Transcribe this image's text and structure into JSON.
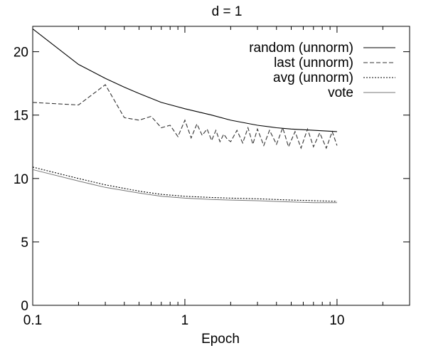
{
  "chart_data": {
    "type": "line",
    "title": "d = 1",
    "xlabel": "Epoch",
    "ylabel": "",
    "xscale": "log",
    "xlim": [
      0.1,
      30
    ],
    "ylim": [
      0,
      22
    ],
    "xticks": [
      0.1,
      1,
      10
    ],
    "xtick_labels": [
      "0.1",
      "1",
      "10"
    ],
    "yticks": [
      0,
      5,
      10,
      15,
      20
    ],
    "ytick_labels": [
      "0",
      "5",
      "10",
      "15",
      "20"
    ],
    "grid": false,
    "legend_position": "top-right",
    "series": [
      {
        "name": "random (unnorm)",
        "style": "solid",
        "color": "#000000",
        "x": [
          0.1,
          0.2,
          0.3,
          0.4,
          0.5,
          0.7,
          1,
          1.5,
          2,
          3,
          4,
          5,
          7,
          10
        ],
        "y": [
          21.8,
          19.0,
          17.9,
          17.2,
          16.7,
          16.0,
          15.5,
          15.0,
          14.6,
          14.2,
          14.0,
          13.9,
          13.8,
          13.7
        ]
      },
      {
        "name": "last (unnorm)",
        "style": "dashed",
        "color": "#000000",
        "x": [
          0.1,
          0.2,
          0.3,
          0.4,
          0.5,
          0.6,
          0.7,
          0.8,
          0.9,
          1.0,
          1.1,
          1.2,
          1.3,
          1.4,
          1.5,
          1.6,
          1.7,
          1.8,
          1.9,
          2.0,
          2.2,
          2.4,
          2.6,
          2.8,
          3.0,
          3.3,
          3.6,
          4.0,
          4.4,
          4.8,
          5.3,
          5.8,
          6.4,
          7.0,
          7.7,
          8.5,
          9.3,
          10.0
        ],
        "y": [
          16.0,
          15.8,
          17.4,
          14.8,
          14.6,
          14.9,
          14.0,
          14.2,
          13.3,
          14.6,
          13.2,
          14.3,
          13.4,
          13.9,
          13.0,
          13.8,
          12.9,
          13.5,
          13.1,
          12.9,
          13.8,
          12.8,
          14.0,
          12.7,
          13.9,
          12.6,
          13.8,
          12.7,
          14.0,
          12.5,
          13.7,
          12.4,
          13.9,
          12.5,
          13.6,
          12.4,
          13.7,
          12.6
        ]
      },
      {
        "name": "avg (unnorm)",
        "style": "dotted",
        "color": "#000000",
        "x": [
          0.1,
          0.2,
          0.3,
          0.5,
          0.7,
          1,
          1.5,
          2,
          3,
          5,
          7,
          10
        ],
        "y": [
          10.9,
          10.0,
          9.5,
          9.0,
          8.75,
          8.6,
          8.5,
          8.45,
          8.4,
          8.3,
          8.25,
          8.2
        ]
      },
      {
        "name": "vote",
        "style": "solid-light",
        "color": "#777777",
        "x": [
          0.1,
          0.2,
          0.3,
          0.5,
          0.7,
          1,
          1.5,
          2,
          3,
          5,
          7,
          10
        ],
        "y": [
          10.7,
          9.8,
          9.3,
          8.85,
          8.6,
          8.45,
          8.35,
          8.3,
          8.25,
          8.15,
          8.1,
          8.1
        ]
      }
    ]
  }
}
